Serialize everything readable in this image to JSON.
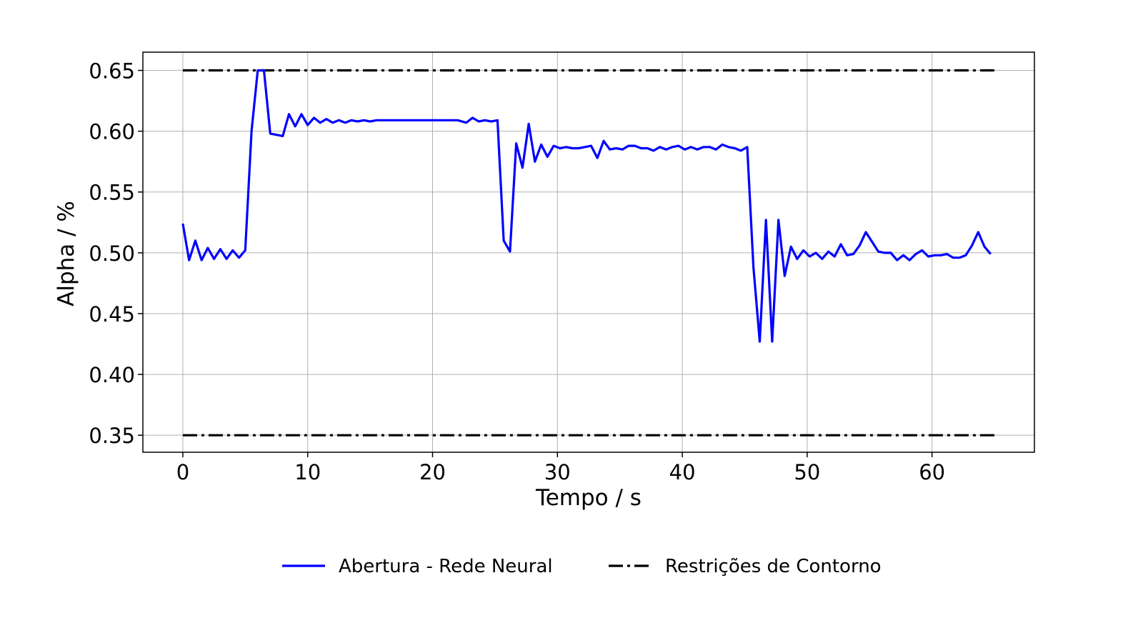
{
  "chart_data": {
    "type": "line",
    "xlabel": "Tempo / s",
    "ylabel": "Alpha / %",
    "xlim": [
      -3.2,
      68.2
    ],
    "ylim": [
      0.336,
      0.665
    ],
    "xticks": [
      0,
      10,
      20,
      30,
      40,
      50,
      60
    ],
    "yticks": [
      0.35,
      0.4,
      0.45,
      0.5,
      0.55,
      0.6,
      0.65
    ],
    "xtick_labels": [
      "0",
      "10",
      "20",
      "30",
      "40",
      "50",
      "60"
    ],
    "ytick_labels": [
      "0.35",
      "0.40",
      "0.45",
      "0.50",
      "0.55",
      "0.60",
      "0.65"
    ],
    "grid": true,
    "legend_position": "bottom-center-outside",
    "series": [
      {
        "name": "Abertura - Rede Neural",
        "color": "#0000ff",
        "style": "solid",
        "x": [
          0.0,
          0.5,
          1.0,
          1.5,
          2.0,
          2.5,
          3.0,
          3.5,
          4.0,
          4.5,
          5.0,
          5.5,
          6.0,
          6.5,
          7.0,
          7.5,
          8.0,
          8.5,
          9.0,
          9.5,
          10.0,
          10.5,
          11.0,
          11.5,
          12.0,
          12.5,
          13.0,
          13.5,
          14.0,
          14.5,
          15.0,
          15.5,
          16.0,
          16.5,
          17.0,
          18.0,
          19.0,
          20.0,
          21.0,
          22.0,
          22.7,
          23.2,
          23.7,
          24.2,
          24.7,
          25.2,
          25.7,
          26.2,
          26.7,
          27.2,
          27.7,
          28.2,
          28.7,
          29.2,
          29.7,
          30.2,
          30.7,
          31.2,
          31.7,
          32.2,
          32.7,
          33.2,
          33.7,
          34.2,
          34.7,
          35.2,
          35.7,
          36.2,
          36.7,
          37.2,
          37.7,
          38.2,
          38.7,
          39.2,
          39.7,
          40.2,
          40.7,
          41.2,
          41.7,
          42.2,
          42.7,
          43.2,
          43.7,
          44.2,
          44.7,
          45.2,
          45.7,
          46.2,
          46.7,
          47.2,
          47.7,
          48.2,
          48.7,
          49.2,
          49.7,
          50.2,
          50.7,
          51.2,
          51.7,
          52.2,
          52.7,
          53.2,
          53.7,
          54.2,
          54.7,
          55.2,
          55.7,
          56.2,
          56.7,
          57.2,
          57.7,
          58.2,
          58.7,
          59.2,
          59.7,
          60.2,
          60.7,
          61.2,
          61.7,
          62.2,
          62.7,
          63.2,
          63.7,
          64.2,
          64.7
        ],
        "y": [
          0.524,
          0.494,
          0.51,
          0.494,
          0.504,
          0.495,
          0.503,
          0.495,
          0.502,
          0.496,
          0.502,
          0.6,
          0.65,
          0.65,
          0.598,
          0.597,
          0.596,
          0.614,
          0.604,
          0.614,
          0.605,
          0.611,
          0.607,
          0.61,
          0.607,
          0.609,
          0.607,
          0.609,
          0.608,
          0.609,
          0.608,
          0.609,
          0.609,
          0.609,
          0.609,
          0.609,
          0.609,
          0.609,
          0.609,
          0.609,
          0.607,
          0.611,
          0.608,
          0.609,
          0.608,
          0.609,
          0.51,
          0.501,
          0.59,
          0.57,
          0.606,
          0.575,
          0.589,
          0.579,
          0.588,
          0.586,
          0.587,
          0.586,
          0.586,
          0.587,
          0.588,
          0.578,
          0.592,
          0.585,
          0.586,
          0.585,
          0.588,
          0.588,
          0.586,
          0.586,
          0.584,
          0.587,
          0.585,
          0.587,
          0.588,
          0.585,
          0.587,
          0.585,
          0.587,
          0.587,
          0.585,
          0.589,
          0.587,
          0.586,
          0.584,
          0.587,
          0.488,
          0.427,
          0.527,
          0.427,
          0.527,
          0.481,
          0.505,
          0.495,
          0.502,
          0.497,
          0.5,
          0.495,
          0.501,
          0.497,
          0.507,
          0.498,
          0.499,
          0.506,
          0.517,
          0.509,
          0.501,
          0.5,
          0.5,
          0.494,
          0.498,
          0.494,
          0.499,
          0.502,
          0.497,
          0.498,
          0.498,
          0.499,
          0.496,
          0.496,
          0.498,
          0.506,
          0.517,
          0.505,
          0.499
        ]
      },
      {
        "name": "Restrições de Contorno",
        "color": "#000000",
        "style": "dashdot",
        "lines": [
          {
            "x": [
              0,
              65
            ],
            "y": [
              0.65,
              0.65
            ]
          },
          {
            "x": [
              0,
              65
            ],
            "y": [
              0.35,
              0.35
            ]
          }
        ]
      }
    ]
  }
}
